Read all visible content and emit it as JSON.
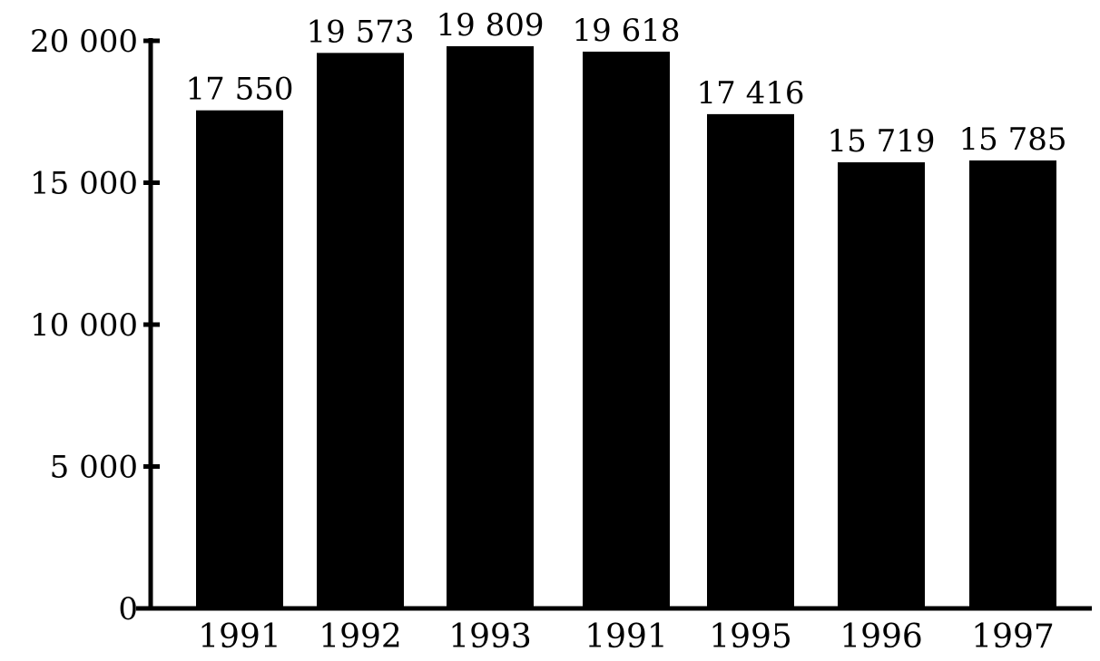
{
  "chart_data": {
    "type": "bar",
    "title": "",
    "xlabel": "",
    "ylabel": "",
    "categories": [
      "1991",
      "1992",
      "1993",
      "1991",
      "1995",
      "1996",
      "1997"
    ],
    "values": [
      17550,
      19573,
      19809,
      19618,
      17416,
      15719,
      15785
    ],
    "value_labels": [
      "17 550",
      "19 573",
      "19 809",
      "19 618",
      "17 416",
      "15 719",
      "15 785"
    ],
    "ylim": [
      0,
      20000
    ],
    "yticks": [
      0,
      5000,
      10000,
      15000,
      20000
    ],
    "ytick_labels": [
      "0",
      "5 000",
      "10 000",
      "15 000",
      "20 000"
    ],
    "grid": false,
    "legend": "none",
    "colors": {
      "bar": "#000000",
      "axis": "#000000",
      "background": "#ffffff"
    }
  }
}
